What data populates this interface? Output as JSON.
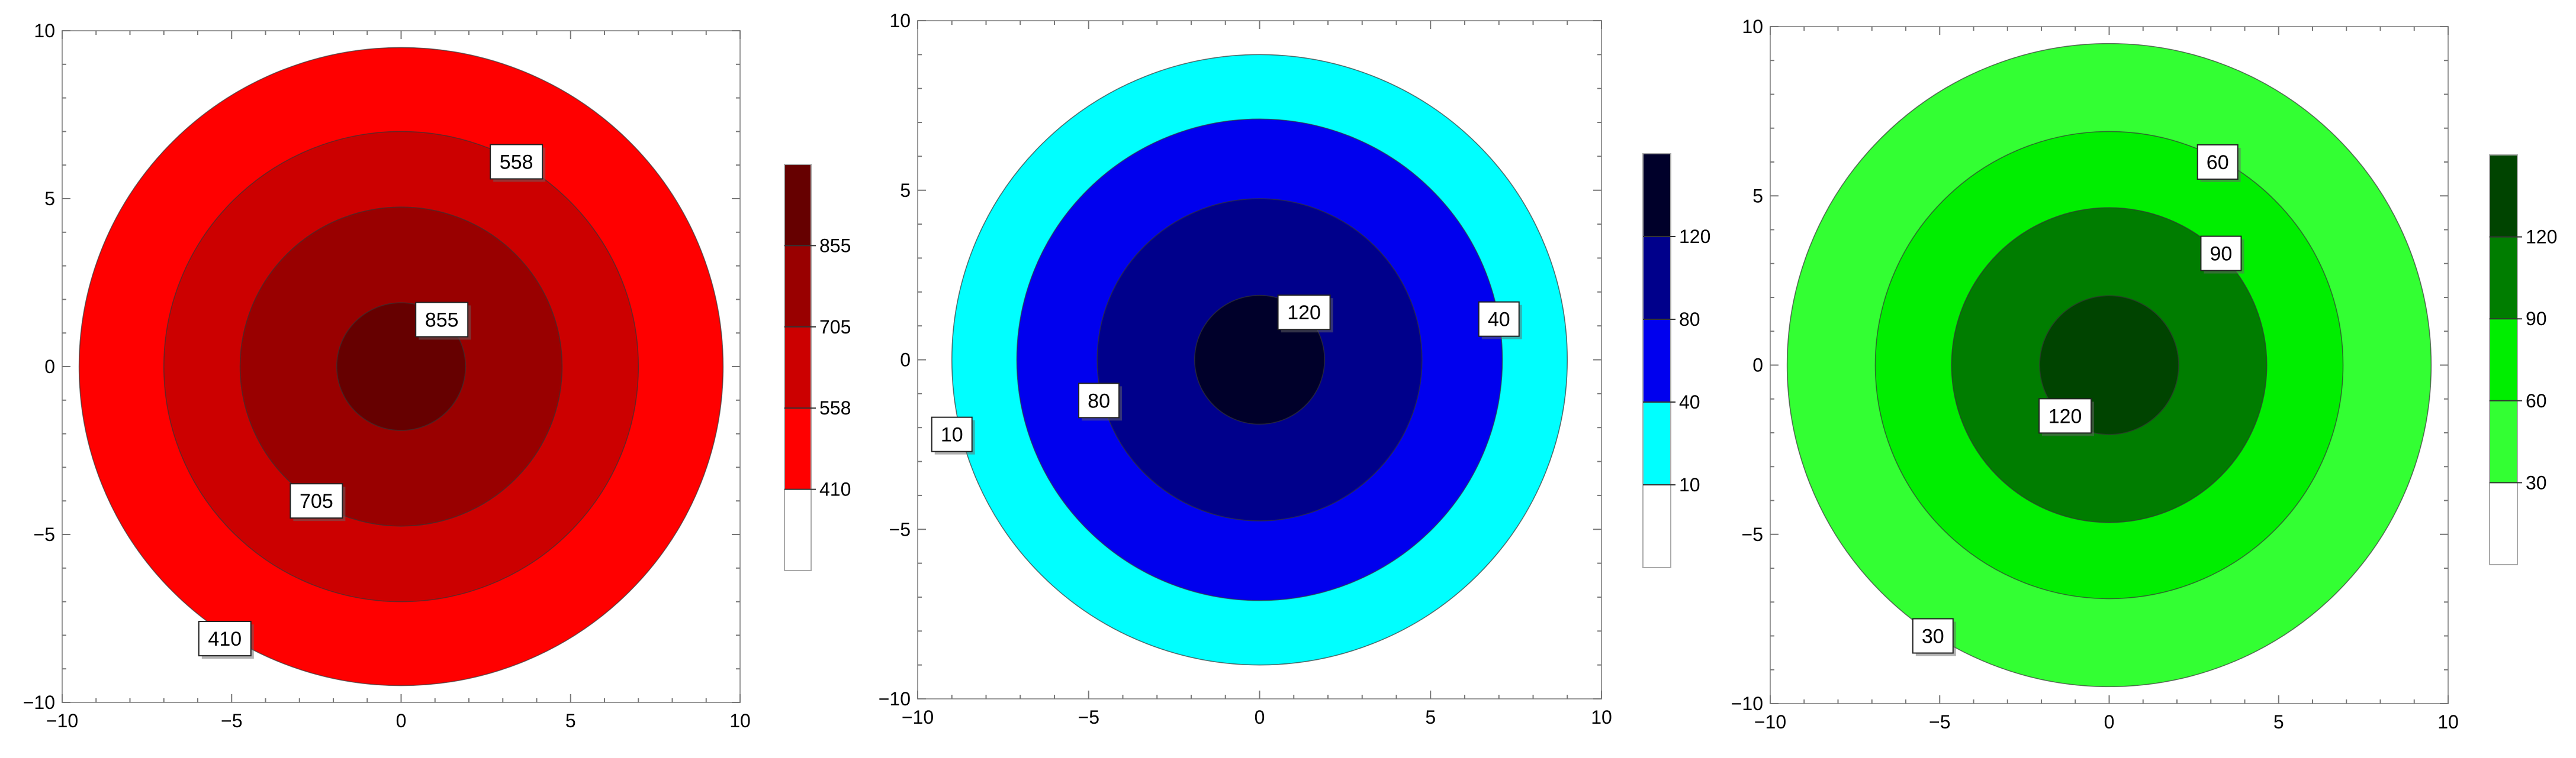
{
  "chart_data": [
    {
      "type": "contour",
      "xlim": [
        -10,
        10
      ],
      "ylim": [
        -10,
        10
      ],
      "xticks": [
        -10,
        -5,
        0,
        5,
        10
      ],
      "yticks": [
        -10,
        -5,
        0,
        5,
        10
      ],
      "tick_labels": [
        "−10",
        "−5",
        "0",
        "5",
        "10"
      ],
      "levels": [
        410,
        558,
        705,
        855
      ],
      "rings": [
        {
          "outer_radius": 9.5,
          "value": "410",
          "color": "#ff0000"
        },
        {
          "outer_radius": 7.0,
          "value": "558",
          "color": "#cc0000"
        },
        {
          "outer_radius": 4.75,
          "value": "705",
          "color": "#990000"
        },
        {
          "outer_radius": 1.9,
          "value": "855",
          "color": "#660000"
        }
      ],
      "labels": [
        {
          "text": "558",
          "x": 3.4,
          "y": 6.1
        },
        {
          "text": "855",
          "x": 1.2,
          "y": 1.4
        },
        {
          "text": "705",
          "x": -2.5,
          "y": -4.0
        },
        {
          "text": "410",
          "x": -5.2,
          "y": -8.1
        }
      ],
      "legend": {
        "placement": "right",
        "labels": [
          "410",
          "558",
          "705",
          "855"
        ],
        "colors": [
          "#ffffff",
          "#ff0000",
          "#cc0000",
          "#990000",
          "#660000"
        ]
      }
    },
    {
      "type": "contour",
      "xlim": [
        -10,
        10
      ],
      "ylim": [
        -10,
        10
      ],
      "xticks": [
        -10,
        -5,
        0,
        5,
        10
      ],
      "yticks": [
        -10,
        -5,
        0,
        5,
        10
      ],
      "tick_labels": [
        "−10",
        "−5",
        "0",
        "5",
        "10"
      ],
      "levels": [
        10,
        40,
        80,
        120
      ],
      "rings": [
        {
          "outer_radius": 9.0,
          "value": "10",
          "color": "#00ffff"
        },
        {
          "outer_radius": 7.1,
          "value": "40",
          "color": "#0000ee"
        },
        {
          "outer_radius": 4.75,
          "value": "80",
          "color": "#00008b"
        },
        {
          "outer_radius": 1.9,
          "value": "120",
          "color": "#00002a"
        }
      ],
      "labels": [
        {
          "text": "120",
          "x": 1.3,
          "y": 1.4
        },
        {
          "text": "40",
          "x": 7.0,
          "y": 1.2
        },
        {
          "text": "80",
          "x": -4.7,
          "y": -1.2
        },
        {
          "text": "10",
          "x": -9.0,
          "y": -2.2
        }
      ],
      "legend": {
        "placement": "right",
        "labels": [
          "10",
          "40",
          "80",
          "120"
        ],
        "colors": [
          "#ffffff",
          "#00ffff",
          "#0000ee",
          "#00008b",
          "#00002a"
        ]
      }
    },
    {
      "type": "contour",
      "xlim": [
        -10,
        10
      ],
      "ylim": [
        -10,
        10
      ],
      "xticks": [
        -10,
        -5,
        0,
        5,
        10
      ],
      "yticks": [
        -10,
        -5,
        0,
        5,
        10
      ],
      "tick_labels": [
        "−10",
        "−5",
        "0",
        "5",
        "10"
      ],
      "levels": [
        30,
        60,
        90,
        120
      ],
      "rings": [
        {
          "outer_radius": 9.5,
          "value": "30",
          "color": "#33ff33"
        },
        {
          "outer_radius": 6.9,
          "value": "60",
          "color": "#00ee00"
        },
        {
          "outer_radius": 4.65,
          "value": "90",
          "color": "#007d00"
        },
        {
          "outer_radius": 2.05,
          "value": "120",
          "color": "#004400"
        }
      ],
      "labels": [
        {
          "text": "60",
          "x": 3.2,
          "y": 6.0
        },
        {
          "text": "90",
          "x": 3.3,
          "y": 3.3
        },
        {
          "text": "120",
          "x": -1.3,
          "y": -1.5
        },
        {
          "text": "30",
          "x": -5.2,
          "y": -8.0
        }
      ],
      "legend": {
        "placement": "right",
        "labels": [
          "30",
          "60",
          "90",
          "120"
        ],
        "colors": [
          "#ffffff",
          "#33ff33",
          "#00ee00",
          "#007d00",
          "#004400"
        ]
      }
    }
  ]
}
